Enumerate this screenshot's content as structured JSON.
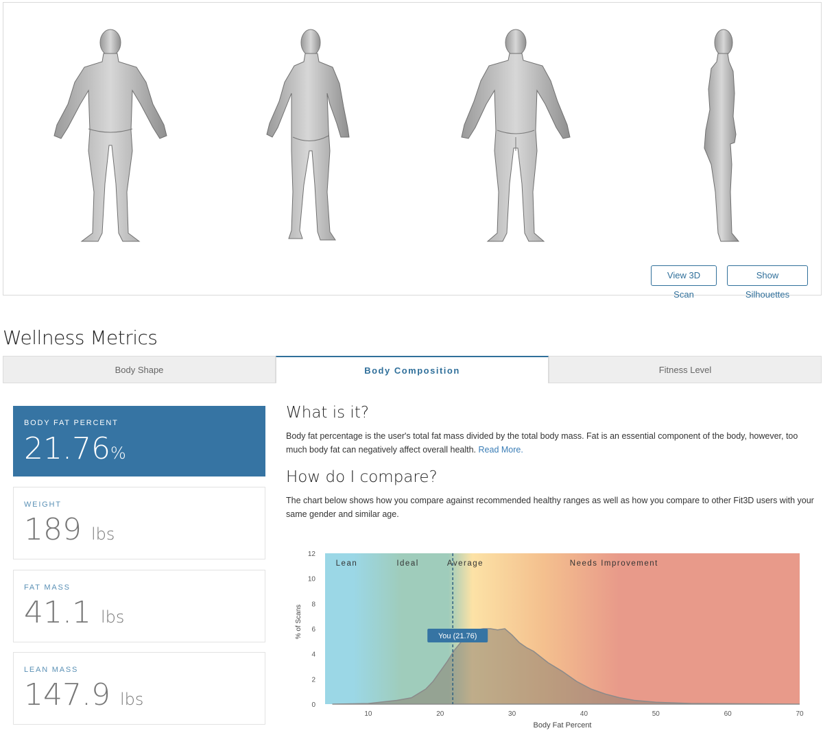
{
  "scan_panel": {
    "view_3d_label": "View 3D Scan",
    "silhouettes_label": "Show Silhouettes"
  },
  "section_title": "Wellness Metrics",
  "tabs": [
    {
      "label": "Body Shape",
      "active": false
    },
    {
      "label": "Body Composition",
      "active": true
    },
    {
      "label": "Fitness Level",
      "active": false
    }
  ],
  "metrics": [
    {
      "label": "BODY FAT PERCENT",
      "value": "21.76",
      "unit": "%"
    },
    {
      "label": "WEIGHT",
      "value": "189",
      "unit": "lbs"
    },
    {
      "label": "FAT MASS",
      "value": "41.1",
      "unit": "lbs"
    },
    {
      "label": "LEAN MASS",
      "value": "147.9",
      "unit": "lbs"
    }
  ],
  "what_is_it": {
    "heading": "What is it?",
    "text": "Body fat percentage is the user's total fat mass divided by the total body mass. Fat is an essential component of the body, however, too much body fat can negatively affect overall health.",
    "link": "Read More."
  },
  "compare": {
    "heading": "How do I compare?",
    "text": "The chart below shows how you compare against recommended healthy ranges as well as how you compare to other Fit3D users with your same gender and similar age."
  },
  "colors": {
    "accent": "#3674a3",
    "lean": "#9bd7e6",
    "ideal": "#9fccbb",
    "average": "#fce2a6",
    "needs_improvement": "#e89a8a",
    "area_fill": "#8d8273"
  },
  "chart_data": {
    "type": "area",
    "xlabel": "Body Fat Percent",
    "ylabel": "% of Scans",
    "xlim": [
      4,
      70
    ],
    "ylim": [
      0,
      12
    ],
    "x_ticks": [
      10,
      20,
      30,
      40,
      50,
      60,
      70
    ],
    "y_ticks": [
      0,
      2,
      4,
      6,
      8,
      10,
      12
    ],
    "zones": [
      {
        "name": "Lean",
        "from": 4,
        "to": 10
      },
      {
        "name": "Ideal",
        "from": 10,
        "to": 21
      },
      {
        "name": "Average",
        "from": 21,
        "to": 26
      },
      {
        "name": "Needs Improvement",
        "from": 26,
        "to": 70
      }
    ],
    "marker": {
      "value": 21.76,
      "label": "You (21.76)"
    },
    "x": [
      5,
      10,
      14,
      16,
      18,
      19,
      20,
      21,
      22,
      23,
      24,
      25,
      26,
      27,
      28,
      29,
      30,
      31,
      32,
      33,
      35,
      37,
      39,
      41,
      43,
      45,
      47,
      50,
      55,
      70
    ],
    "values": [
      0,
      0.05,
      0.3,
      0.5,
      1.2,
      1.8,
      2.6,
      3.4,
      4.3,
      5.0,
      5.6,
      5.9,
      6.0,
      6.0,
      5.9,
      6.0,
      5.5,
      4.9,
      4.5,
      4.2,
      3.3,
      2.6,
      1.8,
      1.2,
      0.8,
      0.5,
      0.3,
      0.15,
      0.05,
      0
    ]
  }
}
